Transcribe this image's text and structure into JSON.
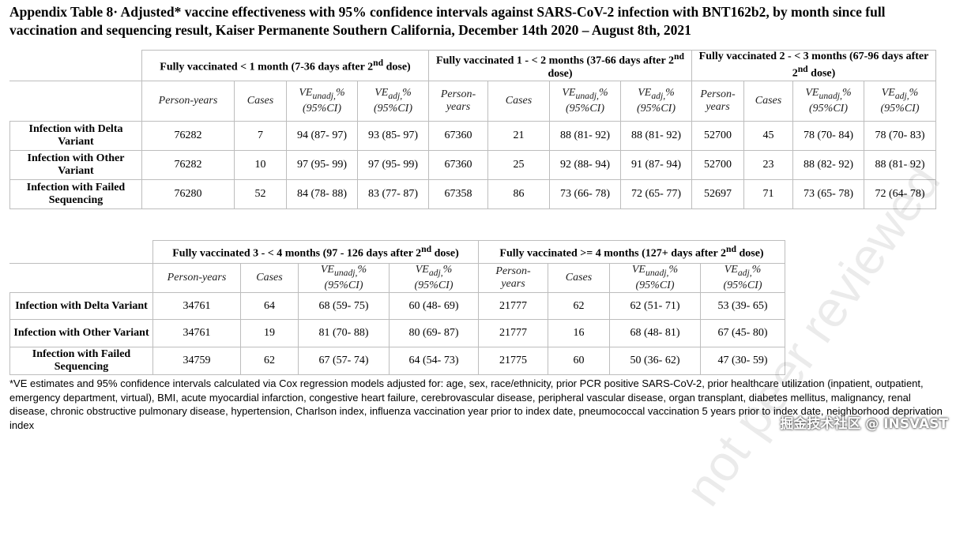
{
  "title": "Appendix Table 8· Adjusted* vaccine effectiveness with 95% confidence intervals against SARS-CoV-2 infection with BNT162b2, by month since full vaccination and sequencing result, Kaiser Permanente Southern California, December 14th 2020 – August 8th, 2021",
  "sub_headers": {
    "py": "Person-years",
    "py_split": [
      "Person-",
      "years"
    ],
    "cases": "Cases",
    "ve": "VE",
    "ve_unadj_sub": "unadj,",
    "ve_adj_sub": "adj,",
    "pct": "%",
    "ci": "(95%CI)"
  },
  "table1": {
    "groups": [
      {
        "pre": "Fully vaccinated < 1 month (7-36 days after 2",
        "sup": "nd",
        "post": " dose)"
      },
      {
        "pre": "Fully vaccinated 1 - < 2 months (37-66 days after 2",
        "sup": "nd",
        "post": " dose)"
      },
      {
        "pre": "Fully vaccinated 2 - < 3 months (67-96 days after 2",
        "sup": "nd",
        "post": " dose)"
      }
    ],
    "rows": [
      {
        "label": "Infection with Delta Variant",
        "cells": [
          "76282",
          "7",
          "94 (87- 97)",
          "93 (85- 97)",
          "67360",
          "21",
          "88 (81- 92)",
          "88 (81- 92)",
          "52700",
          "45",
          "78 (70- 84)",
          "78 (70- 83)"
        ]
      },
      {
        "label": "Infection with Other Variant",
        "cells": [
          "76282",
          "10",
          "97 (95- 99)",
          "97 (95- 99)",
          "67360",
          "25",
          "92 (88- 94)",
          "91 (87- 94)",
          "52700",
          "23",
          "88 (82- 92)",
          "88 (81- 92)"
        ]
      },
      {
        "label": "Infection with Failed Sequencing",
        "cells": [
          "76280",
          "52",
          "84 (78- 88)",
          "83 (77- 87)",
          "67358",
          "86",
          "73 (66- 78)",
          "72 (65- 77)",
          "52697",
          "71",
          "73 (65- 78)",
          "72 (64- 78)"
        ]
      }
    ]
  },
  "table2": {
    "groups": [
      {
        "pre": "Fully vaccinated 3 - < 4 months (97 - 126 days after 2",
        "sup": "nd",
        "post": " dose)"
      },
      {
        "pre": "Fully vaccinated >= 4 months (127+ days after 2",
        "sup": "nd",
        "post": " dose)"
      }
    ],
    "rows": [
      {
        "label": "Infection with Delta Variant",
        "cells": [
          "34761",
          "64",
          "68 (59- 75)",
          "60 (48- 69)",
          "21777",
          "62",
          "62 (51- 71)",
          "53 (39- 65)"
        ]
      },
      {
        "label": "Infection with Other Variant",
        "cells": [
          "34761",
          "19",
          "81 (70- 88)",
          "80 (69- 87)",
          "21777",
          "16",
          "68 (48- 81)",
          "67 (45- 80)"
        ]
      },
      {
        "label": "Infection with Failed Sequencing",
        "cells": [
          "34759",
          "62",
          "67 (57- 74)",
          "64 (54- 73)",
          "21775",
          "60",
          "50 (36- 62)",
          "47 (30- 59)"
        ]
      }
    ]
  },
  "footnote": "*VE estimates and 95% confidence intervals calculated via Cox regression models adjusted for: age, sex, race/ethnicity, prior PCR positive SARS-CoV-2, prior healthcare utilization (inpatient, outpatient, emergency department, virtual), BMI, acute myocardial infarction, congestive heart failure, cerebrovascular disease, peripheral vascular disease, organ transplant, diabetes mellitus, malignancy, renal disease, chronic obstructive pulmonary disease, hypertension, Charlson index, influenza vaccination year prior to index date, pneumococcal vaccination 5 years prior to index date, neighborhood deprivation index",
  "watermark": "not peer reviewed",
  "brand": "掘金技术社区 @ INSVAST"
}
